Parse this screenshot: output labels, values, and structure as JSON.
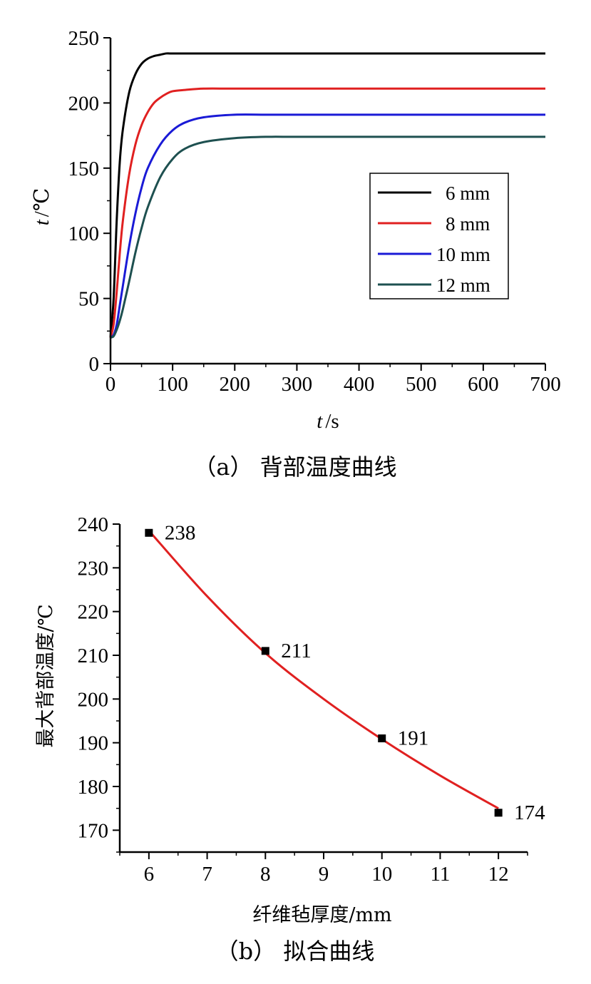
{
  "chart_data": [
    {
      "type": "line",
      "caption": "（a） 背部温度曲线",
      "xlabel_italic": "t",
      "xlabel_unit": "/s",
      "ylabel_italic": "t",
      "ylabel_unit": "/℃",
      "xlim": [
        0,
        700
      ],
      "ylim": [
        0,
        250
      ],
      "xticks": [
        0,
        100,
        200,
        300,
        400,
        500,
        600,
        700
      ],
      "yticks": [
        0,
        50,
        100,
        150,
        200,
        250
      ],
      "legend_position": "center-right",
      "grid": false,
      "series": [
        {
          "name": "6 mm",
          "color": "#000000",
          "x": [
            0,
            5,
            10,
            15,
            20,
            30,
            40,
            50,
            60,
            70,
            80,
            90,
            100,
            150,
            200,
            300,
            400,
            500,
            600,
            700
          ],
          "y": [
            20,
            50,
            110,
            155,
            180,
            208,
            222,
            230,
            234,
            236,
            237,
            238,
            238,
            238,
            238,
            238,
            238,
            238,
            238,
            238
          ]
        },
        {
          "name": "8 mm",
          "color": "#e02020",
          "x": [
            0,
            5,
            10,
            15,
            20,
            30,
            40,
            50,
            60,
            70,
            80,
            90,
            100,
            120,
            150,
            200,
            300,
            400,
            500,
            600,
            700
          ],
          "y": [
            20,
            30,
            55,
            85,
            110,
            145,
            168,
            183,
            193,
            200,
            204,
            207,
            209,
            210,
            211,
            211,
            211,
            211,
            211,
            211,
            211
          ]
        },
        {
          "name": "10 mm",
          "color": "#1a1ad6",
          "x": [
            0,
            5,
            10,
            15,
            20,
            30,
            40,
            50,
            60,
            80,
            100,
            120,
            150,
            200,
            250,
            300,
            400,
            500,
            600,
            700
          ],
          "y": [
            20,
            22,
            30,
            45,
            60,
            90,
            115,
            135,
            150,
            168,
            179,
            185,
            189,
            191,
            191,
            191,
            191,
            191,
            191,
            191
          ]
        },
        {
          "name": "12 mm",
          "color": "#1e5050",
          "x": [
            0,
            5,
            10,
            15,
            20,
            30,
            40,
            50,
            60,
            80,
            100,
            120,
            150,
            200,
            250,
            300,
            400,
            500,
            600,
            700
          ],
          "y": [
            20,
            21,
            26,
            33,
            42,
            63,
            85,
            104,
            120,
            143,
            157,
            165,
            170,
            173,
            174,
            174,
            174,
            174,
            174,
            174
          ]
        }
      ]
    },
    {
      "type": "scatter",
      "caption": "（b） 拟合曲线",
      "xlabel": "纤维毡厚度/mm",
      "ylabel": "最大背部温度/℃",
      "xlim": [
        5.5,
        12.5
      ],
      "ylim": [
        165,
        240
      ],
      "xticks": [
        6,
        7,
        8,
        9,
        10,
        11,
        12
      ],
      "yticks": [
        170,
        180,
        190,
        200,
        210,
        220,
        230,
        240
      ],
      "grid": false,
      "points": {
        "x": [
          6,
          8,
          10,
          12
        ],
        "y": [
          238,
          211,
          191,
          174
        ],
        "labels": [
          "238",
          "211",
          "191",
          "174"
        ],
        "color": "#000000"
      },
      "fit": {
        "color": "#e02020",
        "x": [
          6,
          7,
          8,
          9,
          10,
          11,
          12
        ],
        "y": [
          238.5,
          223.5,
          210.5,
          200,
          190.8,
          182.5,
          175
        ]
      }
    }
  ]
}
